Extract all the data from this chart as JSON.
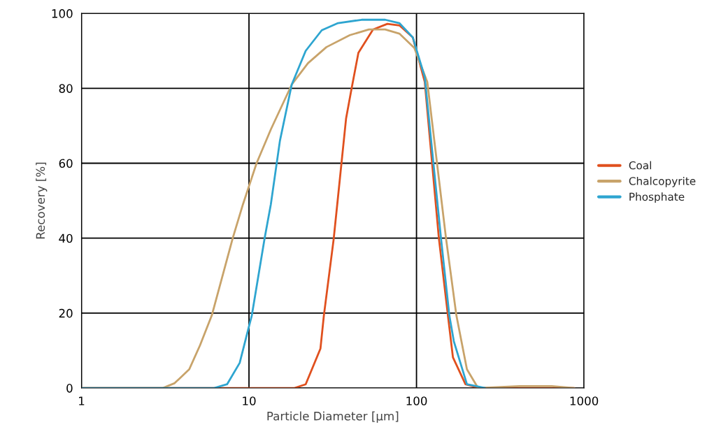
{
  "chart_data": {
    "type": "line",
    "xlabel": "Particle Diameter [µm]",
    "ylabel": "Recovery [%]",
    "log": "x",
    "xlim": [
      1,
      1000
    ],
    "xticks": [
      1,
      10,
      100,
      1000
    ],
    "ylim": [
      0,
      100
    ],
    "yticks": [
      0,
      20,
      40,
      60,
      80,
      100
    ],
    "grid": true,
    "legend": "right",
    "marker": "none",
    "line_style": "solid",
    "series": [
      {
        "name": "Coal",
        "color": "#e0501e",
        "x": [
          1,
          18.7,
          21.8,
          26.7,
          28,
          32,
          34,
          38,
          41,
          45,
          55,
          67,
          79,
          95,
          112,
          136,
          154,
          165,
          196,
          238,
          874
        ],
        "values": [
          0,
          0,
          1,
          10.5,
          19.4,
          39.6,
          51,
          72,
          80,
          89.5,
          95.7,
          97.2,
          96.8,
          93.6,
          81.7,
          40,
          19.4,
          8.2,
          1,
          0,
          0
        ]
      },
      {
        "name": "Chalcopyrite",
        "color": "#c8a36a",
        "x": [
          1,
          3.06,
          3.6,
          4.4,
          5.1,
          6.0,
          8.0,
          9.2,
          11.1,
          13.5,
          18,
          22.5,
          29,
          40,
          52,
          65,
          79,
          97,
          116,
          150,
          173,
          200,
          233,
          412,
          642,
          874
        ],
        "values": [
          0,
          0,
          1.3,
          5,
          11.4,
          19.4,
          40,
          49,
          60,
          69,
          81,
          86.7,
          91,
          94.2,
          95.7,
          95.7,
          94.6,
          90.8,
          81.7,
          40,
          19.4,
          5,
          0,
          0.5,
          0.5,
          0
        ]
      },
      {
        "name": "Phosphate",
        "color": "#2ea5d0",
        "x": [
          1,
          6.2,
          7.4,
          8.8,
          9.9,
          10.4,
          12.4,
          13.5,
          15.3,
          18,
          21.8,
          27.2,
          34,
          47,
          65,
          79,
          95,
          112,
          140,
          157,
          167,
          200,
          257
        ],
        "values": [
          0,
          0,
          1,
          6.7,
          15.7,
          19.4,
          40,
          49,
          66,
          81,
          90,
          95.5,
          97.4,
          98.3,
          98.3,
          97.4,
          93.6,
          83,
          40,
          19.4,
          12.5,
          1,
          0
        ]
      }
    ]
  }
}
